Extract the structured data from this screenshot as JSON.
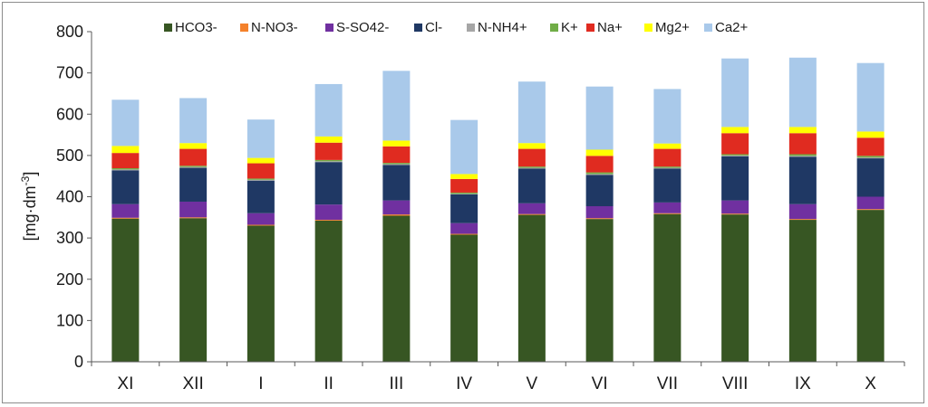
{
  "chart_data": {
    "type": "bar",
    "stacked": true,
    "title": "",
    "xlabel": "",
    "ylabel": "[mg·dm-3]",
    "ylabel_parts": {
      "base": "[mg·dm",
      "sup": "-3",
      "close": "]"
    },
    "ylim": [
      0,
      800
    ],
    "yticks": [
      0,
      100,
      200,
      300,
      400,
      500,
      600,
      700,
      800
    ],
    "grid": false,
    "legend_position": "top",
    "categories": [
      "XI",
      "XII",
      "I",
      "II",
      "III",
      "IV",
      "V",
      "VI",
      "VII",
      "VIII",
      "IX",
      "X"
    ],
    "series": [
      {
        "name": "HCO3-",
        "color": "#375623",
        "values": [
          347,
          348,
          330,
          342,
          354,
          308,
          356,
          346,
          358,
          357,
          344,
          368
        ]
      },
      {
        "name": "N-NO3-",
        "color": "#f4812b",
        "values": [
          2,
          2,
          2,
          2,
          3,
          2,
          2,
          2,
          2,
          2,
          2,
          2
        ]
      },
      {
        "name": "S-SO42-",
        "color": "#7030a0",
        "values": [
          33,
          38,
          28,
          37,
          34,
          26,
          26,
          29,
          26,
          32,
          36,
          30
        ]
      },
      {
        "name": "Cl-",
        "color": "#1f3864",
        "values": [
          82,
          82,
          79,
          103,
          86,
          70,
          84,
          76,
          82,
          107,
          115,
          93
        ]
      },
      {
        "name": "N-NH4+",
        "color": "#a6a6a6",
        "values": [
          2,
          2,
          2,
          2,
          2,
          1,
          2,
          2,
          2,
          2,
          2,
          2
        ]
      },
      {
        "name": "K+",
        "color": "#70ad47",
        "values": [
          3,
          3,
          3,
          3,
          3,
          3,
          3,
          4,
          3,
          3,
          4,
          4
        ]
      },
      {
        "name": "Na+",
        "color": "#e02b20",
        "values": [
          37,
          41,
          37,
          42,
          40,
          33,
          43,
          40,
          43,
          51,
          51,
          44
        ]
      },
      {
        "name": "Mg2+",
        "color": "#ffff00",
        "values": [
          17,
          14,
          13,
          15,
          14,
          12,
          14,
          15,
          13,
          15,
          15,
          15
        ]
      },
      {
        "name": "Ca2+",
        "color": "#a9c9ea",
        "values": [
          112,
          109,
          93,
          127,
          169,
          131,
          149,
          153,
          132,
          166,
          168,
          166
        ]
      }
    ]
  }
}
